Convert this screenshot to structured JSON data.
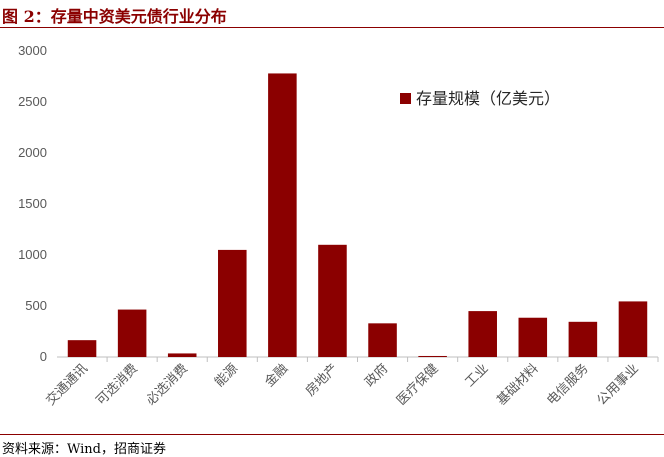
{
  "header": {
    "title": "图 2：存量中资美元债行业分布"
  },
  "footer": {
    "source": "资料来源：Wind，招商证券"
  },
  "chart_data": {
    "type": "bar",
    "categories": [
      "交通通讯",
      "可选消费",
      "必选消费",
      "能源",
      "金融",
      "房地产",
      "政府",
      "医疗保健",
      "工业",
      "基础材料",
      "电信服务",
      "公用事业"
    ],
    "series": [
      {
        "name": "存量规模（亿美元）",
        "values": [
          165,
          465,
          35,
          1050,
          2780,
          1100,
          330,
          10,
          450,
          385,
          345,
          545
        ],
        "color": "#8b0000"
      }
    ],
    "yticks": [
      0,
      500,
      1000,
      1500,
      2000,
      2500,
      3000
    ],
    "ylim": [
      0,
      3000
    ],
    "grid": false,
    "legend": "top-right"
  }
}
